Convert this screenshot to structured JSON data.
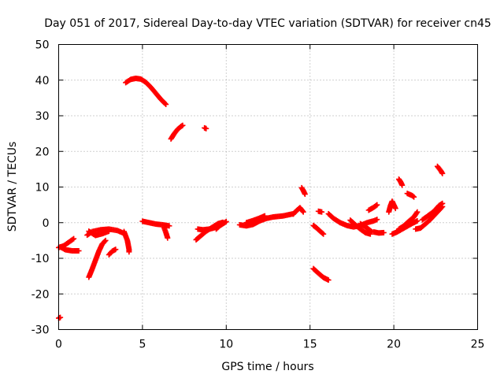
{
  "chart_data": {
    "type": "scatter",
    "title": "Day 051 of 2017, Sidereal Day-to-day VTEC variation (SDTVAR) for receiver cn45",
    "xlabel": "GPS time / hours",
    "ylabel": "SDTVAR / TECUs",
    "xlim": [
      0,
      25
    ],
    "ylim": [
      -30,
      50
    ],
    "xticks": [
      0,
      5,
      10,
      15,
      20,
      25
    ],
    "yticks": [
      -30,
      -20,
      -10,
      0,
      10,
      20,
      30,
      40,
      50
    ],
    "grid": true,
    "marker": "+",
    "color": "#ff0000",
    "segments": [
      [
        [
          0.0,
          -26.8
        ],
        [
          0.1,
          -26.6
        ]
      ],
      [
        [
          0.0,
          -7.0
        ],
        [
          0.3,
          -6.5
        ],
        [
          0.6,
          -5.5
        ],
        [
          0.9,
          -4.5
        ]
      ],
      [
        [
          0.1,
          -6.8
        ],
        [
          0.4,
          -7.6
        ],
        [
          0.8,
          -7.9
        ],
        [
          1.2,
          -7.9
        ]
      ],
      [
        [
          1.8,
          -15.3
        ],
        [
          2.0,
          -13.0
        ],
        [
          2.2,
          -10.5
        ],
        [
          2.4,
          -8.0
        ],
        [
          2.6,
          -6.0
        ],
        [
          2.8,
          -5.0
        ]
      ],
      [
        [
          1.7,
          -3.5
        ],
        [
          2.0,
          -2.5
        ],
        [
          2.5,
          -2.0
        ],
        [
          3.0,
          -1.8
        ],
        [
          3.5,
          -2.2
        ],
        [
          3.9,
          -3.0
        ]
      ],
      [
        [
          1.8,
          -2.4
        ],
        [
          2.2,
          -3.6
        ],
        [
          2.6,
          -3.1
        ],
        [
          3.0,
          -2.4
        ]
      ],
      [
        [
          3.0,
          -9.0
        ],
        [
          3.2,
          -8.0
        ],
        [
          3.4,
          -7.5
        ]
      ],
      [
        [
          3.9,
          -2.5
        ],
        [
          4.1,
          -5.0
        ],
        [
          4.2,
          -7.5
        ],
        [
          4.2,
          -8.2
        ]
      ],
      [
        [
          4.0,
          39.3
        ],
        [
          4.3,
          40.2
        ],
        [
          4.6,
          40.5
        ],
        [
          4.9,
          40.3
        ],
        [
          5.2,
          39.4
        ],
        [
          5.5,
          38.0
        ],
        [
          5.8,
          36.3
        ],
        [
          6.1,
          34.6
        ],
        [
          6.4,
          33.2
        ]
      ],
      [
        [
          5.0,
          0.4
        ],
        [
          5.4,
          0.0
        ],
        [
          5.8,
          -0.4
        ],
        [
          6.2,
          -0.6
        ],
        [
          6.6,
          -0.9
        ]
      ],
      [
        [
          6.3,
          -1.5
        ],
        [
          6.4,
          -2.8
        ],
        [
          6.5,
          -4.3
        ]
      ],
      [
        [
          6.7,
          23.5
        ],
        [
          6.9,
          25.0
        ],
        [
          7.1,
          26.2
        ],
        [
          7.3,
          27.0
        ],
        [
          7.4,
          27.3
        ]
      ],
      [
        [
          8.7,
          26.6
        ],
        [
          8.8,
          26.4
        ]
      ],
      [
        [
          8.3,
          -1.8
        ],
        [
          8.6,
          -2.0
        ],
        [
          9.0,
          -1.8
        ],
        [
          9.4,
          -1.3
        ]
      ],
      [
        [
          8.2,
          -4.8
        ],
        [
          8.5,
          -3.6
        ],
        [
          8.8,
          -2.4
        ],
        [
          9.2,
          -1.2
        ],
        [
          9.5,
          -0.3
        ],
        [
          9.8,
          0.1
        ]
      ],
      [
        [
          9.4,
          -1.8
        ],
        [
          9.6,
          -0.9
        ],
        [
          9.8,
          -0.3
        ],
        [
          10.0,
          0.3
        ]
      ],
      [
        [
          10.8,
          -0.6
        ],
        [
          11.2,
          -0.9
        ],
        [
          11.6,
          -0.5
        ],
        [
          12.0,
          0.5
        ],
        [
          12.4,
          1.2
        ],
        [
          12.8,
          1.6
        ],
        [
          13.4,
          1.9
        ],
        [
          14.0,
          2.5
        ]
      ],
      [
        [
          11.2,
          0.0
        ],
        [
          11.6,
          0.6
        ],
        [
          12.0,
          1.3
        ],
        [
          12.3,
          1.9
        ]
      ],
      [
        [
          14.0,
          2.4
        ],
        [
          14.2,
          3.4
        ],
        [
          14.4,
          4.2
        ],
        [
          14.6,
          3.0
        ]
      ],
      [
        [
          14.5,
          9.8
        ],
        [
          14.6,
          9.0
        ],
        [
          14.7,
          8.0
        ]
      ],
      [
        [
          15.2,
          -0.8
        ],
        [
          15.4,
          -1.5
        ],
        [
          15.6,
          -2.4
        ],
        [
          15.8,
          -3.2
        ]
      ],
      [
        [
          15.5,
          3.2
        ],
        [
          15.7,
          3.0
        ]
      ],
      [
        [
          15.2,
          -12.9
        ],
        [
          15.5,
          -14.2
        ],
        [
          15.8,
          -15.4
        ],
        [
          16.1,
          -16.1
        ]
      ],
      [
        [
          16.1,
          2.5
        ],
        [
          16.4,
          1.2
        ],
        [
          16.8,
          0.0
        ],
        [
          17.2,
          -0.8
        ],
        [
          17.6,
          -1.2
        ],
        [
          18.0,
          -0.8
        ],
        [
          18.4,
          0.0
        ],
        [
          18.8,
          0.5
        ],
        [
          19.0,
          0.9
        ]
      ],
      [
        [
          17.4,
          0.7
        ],
        [
          17.7,
          -0.6
        ],
        [
          18.0,
          -1.8
        ],
        [
          18.3,
          -2.8
        ],
        [
          18.6,
          -3.2
        ]
      ],
      [
        [
          18.0,
          -0.3
        ],
        [
          18.4,
          -1.5
        ],
        [
          18.7,
          -2.6
        ]
      ],
      [
        [
          18.8,
          -2.6
        ],
        [
          19.1,
          -2.9
        ],
        [
          19.4,
          -2.8
        ]
      ],
      [
        [
          18.5,
          3.5
        ],
        [
          18.8,
          4.3
        ],
        [
          19.0,
          5.0
        ]
      ],
      [
        [
          19.7,
          3.0
        ],
        [
          19.8,
          4.8
        ],
        [
          19.9,
          6.0
        ],
        [
          20.1,
          4.0
        ]
      ],
      [
        [
          19.9,
          -3.2
        ],
        [
          20.2,
          -2.6
        ],
        [
          20.5,
          -1.8
        ],
        [
          20.8,
          -1.0
        ],
        [
          21.1,
          -0.2
        ],
        [
          21.4,
          0.5
        ]
      ],
      [
        [
          20.3,
          -1.8
        ],
        [
          20.6,
          -0.9
        ],
        [
          20.9,
          0.4
        ],
        [
          21.2,
          1.6
        ],
        [
          21.4,
          3.0
        ]
      ],
      [
        [
          20.3,
          12.2
        ],
        [
          20.4,
          11.5
        ],
        [
          20.5,
          10.5
        ]
      ],
      [
        [
          20.8,
          8.2
        ],
        [
          21.1,
          7.6
        ],
        [
          21.2,
          7.2
        ]
      ],
      [
        [
          21.3,
          -1.8
        ],
        [
          21.6,
          -1.5
        ],
        [
          21.9,
          -0.3
        ],
        [
          22.2,
          1.0
        ],
        [
          22.5,
          2.5
        ],
        [
          22.9,
          4.5
        ]
      ],
      [
        [
          21.7,
          0.8
        ],
        [
          22.0,
          1.8
        ],
        [
          22.4,
          3.2
        ],
        [
          22.7,
          4.8
        ],
        [
          22.9,
          5.4
        ]
      ],
      [
        [
          22.6,
          15.8
        ],
        [
          22.8,
          14.6
        ],
        [
          22.9,
          13.8
        ]
      ]
    ]
  }
}
